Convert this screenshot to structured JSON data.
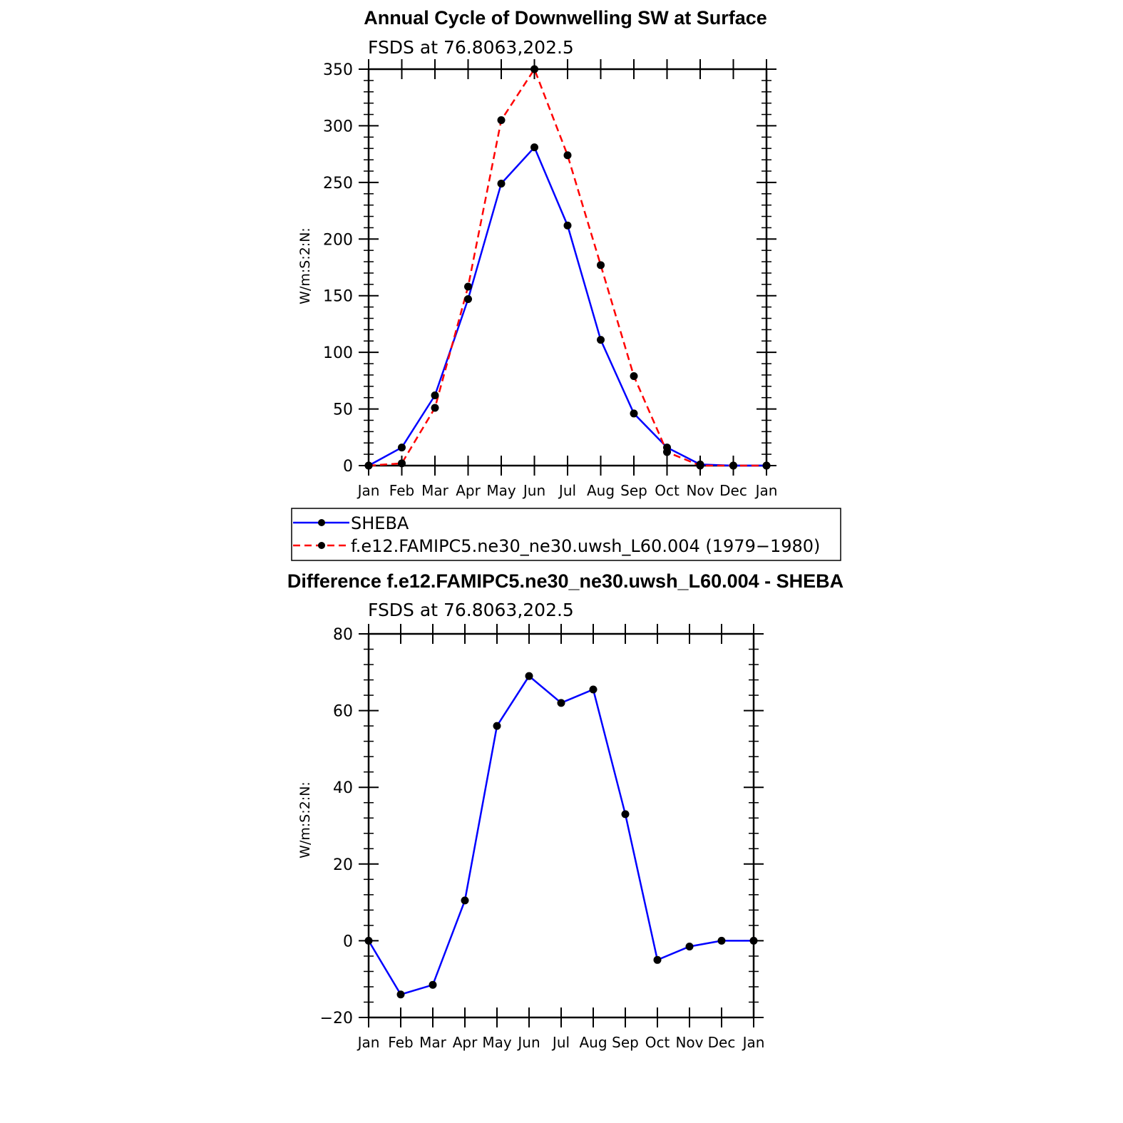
{
  "colors": {
    "model": "#ff0000",
    "obs": "#0000ff",
    "marker": "#000000"
  },
  "chart_data": [
    {
      "type": "line",
      "title": "Annual Cycle of Downwelling SW at Surface",
      "subtitle": "FSDS at 76.8063,202.5",
      "xlabel": "",
      "ylabel": "W/m:S:2:N:",
      "categories": [
        "Jan",
        "Feb",
        "Mar",
        "Apr",
        "May",
        "Jun",
        "Jul",
        "Aug",
        "Sep",
        "Oct",
        "Nov",
        "Dec",
        "Jan"
      ],
      "ylim": [
        0,
        350
      ],
      "yticks": [
        "0",
        "50",
        "100",
        "150",
        "200",
        "250",
        "300",
        "350"
      ],
      "series": [
        {
          "name": "SHEBA",
          "line": "solid",
          "color": "#0000ff",
          "values": [
            0,
            16,
            62,
            147,
            249,
            281,
            212,
            111,
            46,
            16,
            1,
            0,
            0
          ]
        },
        {
          "name": "f.e12.FAMIPC5.ne30_ne30.uwsh_L60.004 (1979−1980)",
          "line": "dashed",
          "color": "#ff0000",
          "values": [
            0,
            2,
            51,
            158,
            305,
            350,
            274,
            177,
            79,
            12,
            0,
            0,
            0
          ]
        }
      ],
      "legend": "bottom"
    },
    {
      "type": "line",
      "title": "Difference f.e12.FAMIPC5.ne30_ne30.uwsh_L60.004 - SHEBA",
      "subtitle": "FSDS at 76.8063,202.5",
      "xlabel": "",
      "ylabel": "W/m:S:2:N:",
      "categories": [
        "Jan",
        "Feb",
        "Mar",
        "Apr",
        "May",
        "Jun",
        "Jul",
        "Aug",
        "Sep",
        "Oct",
        "Nov",
        "Dec",
        "Jan"
      ],
      "ylim": [
        -20,
        80
      ],
      "yticks": [
        "−20",
        "0",
        "20",
        "40",
        "60",
        "80"
      ],
      "series": [
        {
          "color": "#0000ff",
          "line": "solid",
          "values": [
            0,
            -14,
            -11.5,
            10.5,
            56,
            69,
            62,
            65.5,
            33,
            -5,
            -1.5,
            0,
            0
          ]
        }
      ]
    }
  ]
}
